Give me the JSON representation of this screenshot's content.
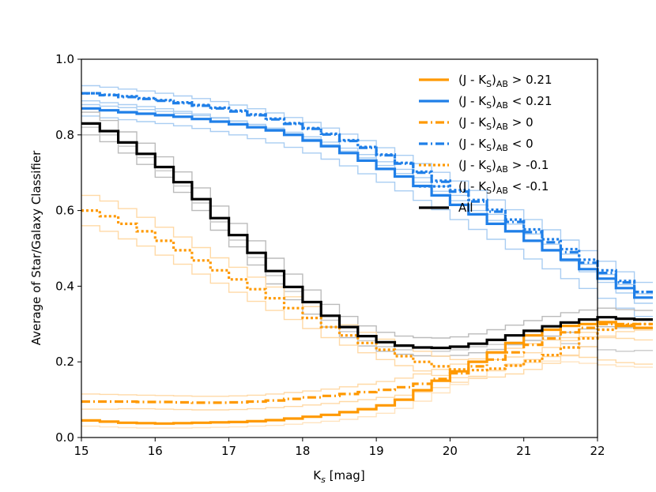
{
  "chart_data": {
    "type": "line",
    "title": "",
    "xlabel_main": "K",
    "xlabel_sub": "s",
    "xlabel_unit": " [mag]",
    "ylabel": "Average of Star/Galaxy Classifier",
    "xlim": [
      15,
      22
    ],
    "ylim": [
      0.0,
      1.0
    ],
    "x_ticks": [
      "15",
      "16",
      "17",
      "18",
      "19",
      "20",
      "21",
      "22"
    ],
    "y_ticks": [
      "0.0",
      "0.2",
      "0.4",
      "0.6",
      "0.8",
      "1.0"
    ],
    "legend_position": "upper-right",
    "colors": {
      "orange": "#ff9900",
      "blue": "#1f7fe8",
      "black": "#000000",
      "gray": "#999999",
      "light_orange": "#ffd9a6",
      "light_blue": "#a9cdf2"
    },
    "legend": [
      {
        "prefix": "(J - K",
        "sub_s": "S",
        "close": ")",
        "sub_ab": "AB",
        "suffix": " > 0.21",
        "color": "#ff9900",
        "style": "solid"
      },
      {
        "prefix": "(J - K",
        "sub_s": "S",
        "close": ")",
        "sub_ab": "AB",
        "suffix": " < 0.21",
        "color": "#1f7fe8",
        "style": "solid"
      },
      {
        "prefix": "(J - K",
        "sub_s": "S",
        "close": ")",
        "sub_ab": "AB",
        "suffix": " > 0",
        "color": "#ff9900",
        "style": "dashdot"
      },
      {
        "prefix": "(J - K",
        "sub_s": "S",
        "close": ")",
        "sub_ab": "AB",
        "suffix": " < 0",
        "color": "#1f7fe8",
        "style": "dashdot"
      },
      {
        "prefix": "(J - K",
        "sub_s": "S",
        "close": ")",
        "sub_ab": "AB",
        "suffix": " > -0.1",
        "color": "#ff9900",
        "style": "dotted"
      },
      {
        "prefix": "(J - K",
        "sub_s": "S",
        "close": ")",
        "sub_ab": "AB",
        "suffix": " < -0.1",
        "color": "#1f7fe8",
        "style": "dotted"
      },
      {
        "prefix": "All",
        "sub_s": "",
        "close": "",
        "sub_ab": "",
        "suffix": "",
        "color": "#000000",
        "style": "solid"
      }
    ],
    "step_width": 0.25,
    "x_start": 15.0,
    "series": [
      {
        "name": "(J - KS)AB > 0.21",
        "color": "#ff9900",
        "style": "solid",
        "values": [
          0.045,
          0.042,
          0.039,
          0.038,
          0.037,
          0.038,
          0.039,
          0.04,
          0.041,
          0.043,
          0.046,
          0.05,
          0.055,
          0.06,
          0.067,
          0.075,
          0.085,
          0.1,
          0.125,
          0.15,
          0.175,
          0.2,
          0.225,
          0.25,
          0.27,
          0.285,
          0.295,
          0.3,
          0.305,
          0.295,
          0.29
        ]
      },
      {
        "name": "(J - KS)AB < 0.21",
        "color": "#1f7fe8",
        "style": "solid",
        "values": [
          0.87,
          0.865,
          0.86,
          0.856,
          0.852,
          0.848,
          0.842,
          0.835,
          0.828,
          0.82,
          0.812,
          0.8,
          0.785,
          0.77,
          0.752,
          0.732,
          0.71,
          0.69,
          0.665,
          0.64,
          0.615,
          0.59,
          0.565,
          0.545,
          0.52,
          0.495,
          0.47,
          0.445,
          0.42,
          0.395,
          0.37
        ]
      },
      {
        "name": "(J - KS)AB > 0",
        "color": "#ff9900",
        "style": "dashdot",
        "values": [
          0.095,
          0.095,
          0.095,
          0.094,
          0.094,
          0.093,
          0.092,
          0.092,
          0.093,
          0.095,
          0.098,
          0.102,
          0.106,
          0.11,
          0.115,
          0.12,
          0.126,
          0.133,
          0.142,
          0.155,
          0.17,
          0.188,
          0.206,
          0.225,
          0.245,
          0.262,
          0.278,
          0.29,
          0.3,
          0.3,
          0.3
        ]
      },
      {
        "name": "(J - KS)AB < 0",
        "color": "#1f7fe8",
        "style": "dashdot",
        "values": [
          0.91,
          0.905,
          0.9,
          0.895,
          0.89,
          0.884,
          0.877,
          0.87,
          0.862,
          0.852,
          0.841,
          0.829,
          0.816,
          0.801,
          0.784,
          0.766,
          0.746,
          0.724,
          0.7,
          0.676,
          0.65,
          0.624,
          0.597,
          0.57,
          0.543,
          0.516,
          0.49,
          0.462,
          0.435,
          0.41,
          0.385
        ]
      },
      {
        "name": "(J - KS)AB > -0.1",
        "color": "#ff9900",
        "style": "dotted",
        "values": [
          0.6,
          0.585,
          0.565,
          0.545,
          0.52,
          0.495,
          0.468,
          0.442,
          0.418,
          0.392,
          0.368,
          0.342,
          0.316,
          0.292,
          0.27,
          0.25,
          0.232,
          0.215,
          0.2,
          0.188,
          0.18,
          0.178,
          0.182,
          0.19,
          0.202,
          0.218,
          0.238,
          0.262,
          0.285,
          0.298,
          0.3
        ]
      },
      {
        "name": "(J - KS)AB < -0.1",
        "color": "#1f7fe8",
        "style": "dotted",
        "values": [
          0.91,
          0.906,
          0.902,
          0.897,
          0.892,
          0.886,
          0.879,
          0.872,
          0.864,
          0.854,
          0.843,
          0.831,
          0.818,
          0.803,
          0.786,
          0.768,
          0.748,
          0.726,
          0.703,
          0.679,
          0.654,
          0.628,
          0.602,
          0.576,
          0.55,
          0.524,
          0.498,
          0.47,
          0.442,
          0.414,
          0.385
        ]
      },
      {
        "name": "All",
        "color": "#000000",
        "style": "solid",
        "values": [
          0.83,
          0.81,
          0.78,
          0.75,
          0.715,
          0.675,
          0.63,
          0.58,
          0.535,
          0.488,
          0.44,
          0.398,
          0.358,
          0.322,
          0.292,
          0.268,
          0.252,
          0.243,
          0.238,
          0.237,
          0.24,
          0.248,
          0.258,
          0.27,
          0.282,
          0.294,
          0.304,
          0.312,
          0.318,
          0.314,
          0.312
        ]
      }
    ],
    "envelope_series": [
      {
        "color": "#a9cdf2",
        "values": [
          0.93,
          0.926,
          0.921,
          0.916,
          0.91,
          0.903,
          0.896,
          0.888,
          0.879,
          0.869,
          0.858,
          0.846,
          0.833,
          0.818,
          0.802,
          0.785,
          0.766,
          0.746,
          0.724,
          0.701,
          0.678,
          0.653,
          0.628,
          0.602,
          0.576,
          0.549,
          0.522,
          0.494,
          0.466,
          0.438,
          0.41
        ]
      },
      {
        "color": "#a9cdf2",
        "values": [
          0.89,
          0.885,
          0.88,
          0.875,
          0.869,
          0.862,
          0.855,
          0.846,
          0.837,
          0.827,
          0.815,
          0.803,
          0.789,
          0.774,
          0.757,
          0.739,
          0.719,
          0.698,
          0.675,
          0.651,
          0.626,
          0.6,
          0.574,
          0.547,
          0.52,
          0.493,
          0.466,
          0.438,
          0.41,
          0.382,
          0.355
        ]
      },
      {
        "color": "#a9cdf2",
        "values": [
          0.85,
          0.845,
          0.84,
          0.835,
          0.83,
          0.824,
          0.817,
          0.809,
          0.8,
          0.79,
          0.779,
          0.767,
          0.752,
          0.736,
          0.718,
          0.697,
          0.675,
          0.652,
          0.627,
          0.602,
          0.576,
          0.55,
          0.524,
          0.498,
          0.472,
          0.446,
          0.42,
          0.394,
          0.368,
          0.342,
          0.32
        ]
      },
      {
        "color": "#a9cdf2",
        "values": [
          0.88,
          0.876,
          0.872,
          0.867,
          0.862,
          0.857,
          0.851,
          0.844,
          0.836,
          0.828,
          0.818,
          0.807,
          0.795,
          0.781,
          0.765,
          0.748,
          0.729,
          0.709,
          0.687,
          0.664,
          0.64,
          0.615,
          0.59,
          0.564,
          0.538,
          0.511,
          0.485,
          0.458,
          0.431,
          0.404,
          0.38
        ]
      },
      {
        "color": "#bbbbbb",
        "values": [
          0.86,
          0.838,
          0.808,
          0.778,
          0.742,
          0.702,
          0.66,
          0.612,
          0.566,
          0.52,
          0.474,
          0.432,
          0.39,
          0.352,
          0.32,
          0.295,
          0.278,
          0.268,
          0.264,
          0.263,
          0.266,
          0.274,
          0.285,
          0.297,
          0.309,
          0.32,
          0.33,
          0.337,
          0.342,
          0.338,
          0.336
        ]
      },
      {
        "color": "#bbbbbb",
        "values": [
          0.8,
          0.782,
          0.752,
          0.722,
          0.688,
          0.648,
          0.6,
          0.548,
          0.504,
          0.456,
          0.406,
          0.364,
          0.326,
          0.292,
          0.264,
          0.242,
          0.228,
          0.22,
          0.216,
          0.215,
          0.217,
          0.224,
          0.233,
          0.245,
          0.257,
          0.268,
          0.278,
          0.287,
          0.293,
          0.29,
          0.288
        ]
      },
      {
        "color": "#c9c9c9",
        "values": [
          0.82,
          0.8,
          0.77,
          0.74,
          0.705,
          0.665,
          0.62,
          0.57,
          0.522,
          0.476,
          0.428,
          0.386,
          0.346,
          0.31,
          0.28,
          0.256,
          0.24,
          0.232,
          0.228,
          0.228,
          0.232,
          0.24,
          0.246,
          0.252,
          0.256,
          0.258,
          0.248,
          0.24,
          0.232,
          0.228,
          0.23
        ]
      },
      {
        "color": "#ffd9a6",
        "values": [
          0.64,
          0.625,
          0.605,
          0.582,
          0.556,
          0.53,
          0.502,
          0.475,
          0.45,
          0.424,
          0.398,
          0.372,
          0.346,
          0.322,
          0.298,
          0.278,
          0.26,
          0.243,
          0.228,
          0.215,
          0.206,
          0.203,
          0.206,
          0.213,
          0.224,
          0.238,
          0.256,
          0.278,
          0.3,
          0.312,
          0.314
        ]
      },
      {
        "color": "#ffd9a6",
        "values": [
          0.56,
          0.545,
          0.525,
          0.506,
          0.482,
          0.458,
          0.432,
          0.408,
          0.384,
          0.36,
          0.336,
          0.312,
          0.288,
          0.264,
          0.244,
          0.224,
          0.206,
          0.19,
          0.176,
          0.164,
          0.158,
          0.156,
          0.16,
          0.168,
          0.18,
          0.196,
          0.216,
          0.24,
          0.264,
          0.28,
          0.284
        ]
      },
      {
        "color": "#ffd9a6",
        "values": [
          0.115,
          0.114,
          0.113,
          0.112,
          0.111,
          0.11,
          0.109,
          0.109,
          0.11,
          0.112,
          0.115,
          0.119,
          0.123,
          0.128,
          0.134,
          0.141,
          0.148,
          0.157,
          0.168,
          0.18,
          0.194,
          0.208,
          0.222,
          0.236,
          0.248,
          0.258,
          0.264,
          0.266,
          0.268,
          0.262,
          0.258
        ]
      },
      {
        "color": "#ffd9a6",
        "values": [
          0.075,
          0.075,
          0.076,
          0.076,
          0.075,
          0.074,
          0.073,
          0.073,
          0.074,
          0.076,
          0.079,
          0.082,
          0.086,
          0.09,
          0.095,
          0.1,
          0.106,
          0.112,
          0.12,
          0.132,
          0.146,
          0.162,
          0.178,
          0.194,
          0.206,
          0.214,
          0.218,
          0.212,
          0.205,
          0.198,
          0.194
        ]
      },
      {
        "color": "#ffe4c0",
        "values": [
          0.03,
          0.028,
          0.026,
          0.025,
          0.025,
          0.025,
          0.026,
          0.027,
          0.028,
          0.03,
          0.032,
          0.035,
          0.039,
          0.043,
          0.048,
          0.055,
          0.064,
          0.077,
          0.096,
          0.118,
          0.14,
          0.16,
          0.176,
          0.19,
          0.198,
          0.202,
          0.2,
          0.196,
          0.192,
          0.188,
          0.186
        ]
      }
    ]
  }
}
